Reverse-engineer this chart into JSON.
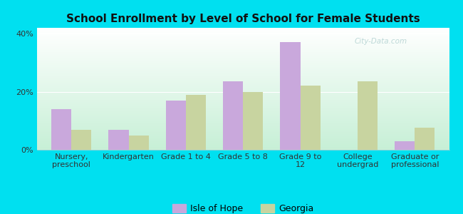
{
  "title": "School Enrollment by Level of School for Female Students",
  "categories": [
    "Nursery,\npreschool",
    "Kindergarten",
    "Grade 1 to 4",
    "Grade 5 to 8",
    "Grade 9 to\n12",
    "College\nundergrad",
    "Graduate or\nprofessional"
  ],
  "isle_of_hope": [
    14.0,
    7.0,
    17.0,
    23.5,
    37.0,
    0.0,
    3.0
  ],
  "georgia": [
    7.0,
    5.0,
    19.0,
    20.0,
    22.0,
    23.5,
    7.5
  ],
  "isle_color": "#c9a8dc",
  "georgia_color": "#c8d4a0",
  "background_outer": "#00e0f0",
  "grad_top_left": "#c8eed8",
  "grad_bottom_right": "#f0fce8",
  "ylim": [
    0,
    42
  ],
  "yticks": [
    0,
    20,
    40
  ],
  "ytick_labels": [
    "0%",
    "20%",
    "40%"
  ],
  "bar_width": 0.35,
  "legend_isle": "Isle of Hope",
  "legend_georgia": "Georgia",
  "watermark": "City-Data.com",
  "title_fontsize": 11,
  "tick_fontsize": 8,
  "legend_fontsize": 9
}
